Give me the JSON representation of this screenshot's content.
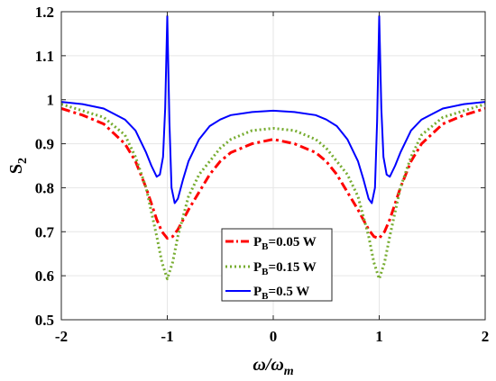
{
  "chart_data": {
    "type": "line",
    "xlabel": "ω/ω",
    "xlabel_sub": "m",
    "ylabel": "S",
    "ylabel_sub": "2",
    "xlim": [
      -2,
      2
    ],
    "ylim": [
      0.5,
      1.2
    ],
    "xticks": [
      -2,
      -1,
      0,
      1,
      2
    ],
    "xtick_labels": [
      "-2",
      "-1",
      "0",
      "1",
      "2"
    ],
    "yticks": [
      0.5,
      0.6,
      0.7,
      0.8,
      0.9,
      1.0,
      1.1,
      1.2
    ],
    "ytick_labels": [
      "0.5",
      "0.6",
      "0.7",
      "0.8",
      "0.9",
      "1",
      "1.1",
      "1.2"
    ],
    "grid": true,
    "legend_position": "lower-center",
    "series": [
      {
        "name": "P",
        "name_sub": "B",
        "name_rest": "=0.05 W",
        "color": "#ff0000",
        "style": "dashdot",
        "x": [
          -2,
          -1.8,
          -1.6,
          -1.4,
          -1.3,
          -1.2,
          -1.1,
          -1.05,
          -1.0,
          -0.95,
          -0.9,
          -0.8,
          -0.7,
          -0.6,
          -0.5,
          -0.4,
          -0.2,
          0,
          0.2,
          0.4,
          0.5,
          0.6,
          0.7,
          0.8,
          0.9,
          0.95,
          1.0,
          1.05,
          1.1,
          1.2,
          1.3,
          1.4,
          1.6,
          1.8,
          2
        ],
        "y": [
          0.98,
          0.965,
          0.945,
          0.9,
          0.86,
          0.8,
          0.728,
          0.7,
          0.685,
          0.689,
          0.705,
          0.75,
          0.79,
          0.83,
          0.86,
          0.88,
          0.9,
          0.91,
          0.9,
          0.88,
          0.86,
          0.83,
          0.79,
          0.75,
          0.705,
          0.689,
          0.685,
          0.7,
          0.728,
          0.8,
          0.86,
          0.9,
          0.945,
          0.965,
          0.98
        ]
      },
      {
        "name": "P",
        "name_sub": "B",
        "name_rest": "=0.15 W",
        "color": "#77ac30",
        "style": "dotted",
        "x": [
          -2,
          -1.8,
          -1.6,
          -1.4,
          -1.3,
          -1.2,
          -1.1,
          -1.05,
          -1.0,
          -0.95,
          -0.9,
          -0.8,
          -0.7,
          -0.6,
          -0.5,
          -0.4,
          -0.2,
          0,
          0.2,
          0.4,
          0.5,
          0.6,
          0.7,
          0.8,
          0.9,
          0.95,
          1.0,
          1.05,
          1.1,
          1.2,
          1.3,
          1.4,
          1.6,
          1.8,
          2
        ],
        "y": [
          0.99,
          0.975,
          0.96,
          0.92,
          0.87,
          0.8,
          0.69,
          0.63,
          0.593,
          0.63,
          0.69,
          0.78,
          0.83,
          0.86,
          0.89,
          0.91,
          0.93,
          0.935,
          0.93,
          0.91,
          0.89,
          0.86,
          0.83,
          0.78,
          0.69,
          0.63,
          0.593,
          0.63,
          0.69,
          0.8,
          0.87,
          0.92,
          0.96,
          0.975,
          0.99
        ]
      },
      {
        "name": "P",
        "name_sub": "B",
        "name_rest": "=0.5 W",
        "color": "#0000ff",
        "style": "solid",
        "x": [
          -2,
          -1.8,
          -1.6,
          -1.4,
          -1.3,
          -1.2,
          -1.15,
          -1.1,
          -1.07,
          -1.04,
          -1.02,
          -1.0,
          -0.98,
          -0.96,
          -0.93,
          -0.9,
          -0.85,
          -0.8,
          -0.7,
          -0.6,
          -0.5,
          -0.4,
          -0.2,
          0,
          0.2,
          0.4,
          0.5,
          0.6,
          0.7,
          0.8,
          0.85,
          0.9,
          0.93,
          0.96,
          0.98,
          1.0,
          1.02,
          1.04,
          1.07,
          1.1,
          1.15,
          1.2,
          1.3,
          1.4,
          1.6,
          1.8,
          2
        ],
        "y": [
          0.995,
          0.99,
          0.98,
          0.955,
          0.93,
          0.88,
          0.85,
          0.825,
          0.83,
          0.87,
          0.98,
          1.19,
          0.95,
          0.8,
          0.765,
          0.775,
          0.82,
          0.86,
          0.91,
          0.94,
          0.955,
          0.965,
          0.972,
          0.975,
          0.972,
          0.965,
          0.955,
          0.94,
          0.91,
          0.86,
          0.82,
          0.775,
          0.765,
          0.8,
          0.95,
          1.19,
          0.98,
          0.87,
          0.83,
          0.825,
          0.85,
          0.88,
          0.93,
          0.955,
          0.98,
          0.99,
          0.995
        ]
      }
    ]
  }
}
